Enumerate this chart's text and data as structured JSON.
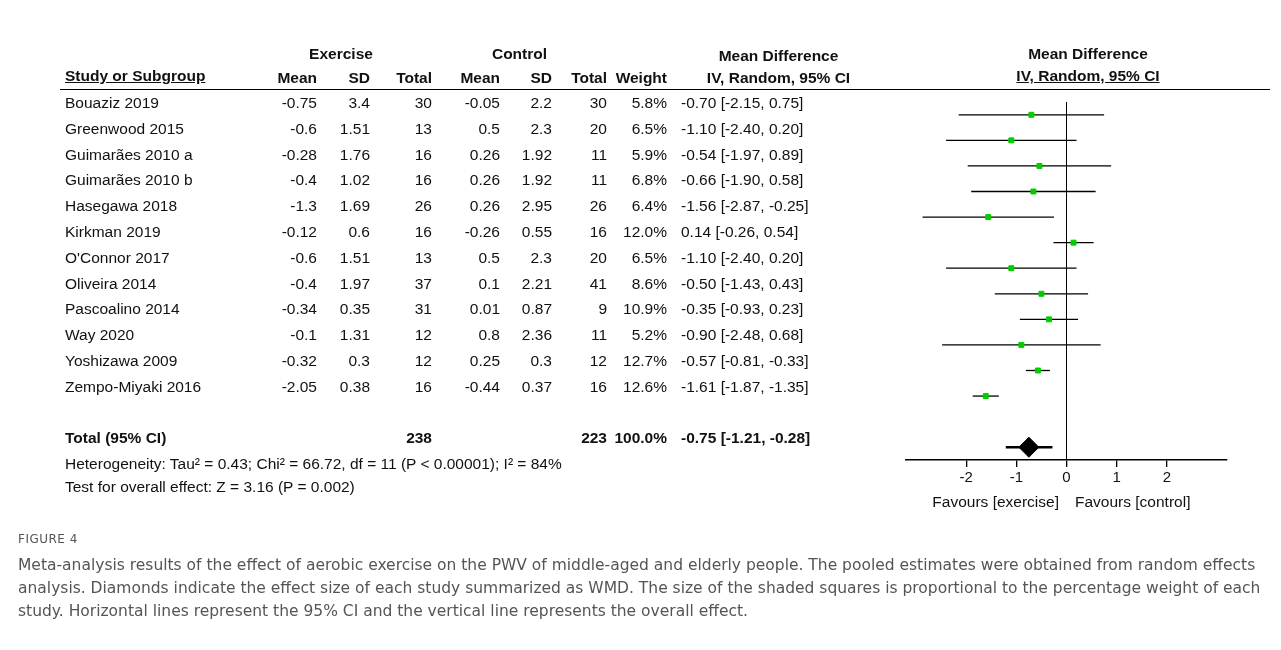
{
  "chart_data": [
    {
      "type": "other",
      "ylabel": "Study or Subgroup",
      "annotations": [
        "Exercise",
        "Control"
      ],
      "categories": [
        "Mean",
        "SD",
        "Total",
        "Mean",
        "SD",
        "Total",
        "Weight",
        "Mean Difference\nIV, Random, 95% CI"
      ],
      "y_categories": [
        "Bouaziz 2019",
        "Greenwood 2015",
        "Guimarães 2010 a",
        "Guimarães 2010 b",
        "Hasegawa 2018",
        "Kirkman 2019",
        "O'Connor 2017",
        "Oliveira 2014",
        "Pascoalino 2014",
        "Way 2020",
        "Yoshizawa 2009",
        "Zempo-Miyaki 2016",
        null,
        "Total (95% CI)"
      ],
      "cell_labels": [
        [
          "-0.75",
          "3.4",
          "30",
          "-0.05",
          "2.2",
          "30",
          "5.8%",
          "-0.70 [-2.15, 0.75]"
        ],
        [
          "-0.6",
          "1.51",
          "13",
          "0.5",
          "2.3",
          "20",
          "6.5%",
          "-1.10 [-2.40, 0.20]"
        ],
        [
          "-0.28",
          "1.76",
          "16",
          "0.26",
          "1.92",
          "11",
          "5.9%",
          "-0.54 [-1.97, 0.89]"
        ],
        [
          "-0.4",
          "1.02",
          "16",
          "0.26",
          "1.92",
          "11",
          "6.8%",
          "-0.66 [-1.90, 0.58]"
        ],
        [
          "-1.3",
          "1.69",
          "26",
          "0.26",
          "2.95",
          "26",
          "6.4%",
          "-1.56 [-2.87, -0.25]"
        ],
        [
          "-0.12",
          "0.6",
          "16",
          "-0.26",
          "0.55",
          "16",
          "12.0%",
          "0.14 [-0.26, 0.54]"
        ],
        [
          "-0.6",
          "1.51",
          "13",
          "0.5",
          "2.3",
          "20",
          "6.5%",
          "-1.10 [-2.40, 0.20]"
        ],
        [
          "-0.4",
          "1.97",
          "37",
          "0.1",
          "2.21",
          "41",
          "8.6%",
          "-0.50 [-1.43, 0.43]"
        ],
        [
          "-0.34",
          "0.35",
          "31",
          "0.01",
          "0.87",
          "9",
          "10.9%",
          "-0.35 [-0.93, 0.23]"
        ],
        [
          "-0.1",
          "1.31",
          "12",
          "0.8",
          "2.36",
          "11",
          "5.2%",
          "-0.90 [-2.48, 0.68]"
        ],
        [
          "-0.32",
          "0.3",
          "12",
          "0.25",
          "0.3",
          "12",
          "12.7%",
          "-0.57 [-0.81, -0.33]"
        ],
        [
          "-2.05",
          "0.38",
          "16",
          "-0.44",
          "0.37",
          "16",
          "12.6%",
          "-1.61 [-1.87, -1.35]"
        ],
        [
          null,
          null,
          null,
          null,
          null,
          null,
          null,
          null
        ],
        [
          null,
          null,
          "238",
          null,
          null,
          "223",
          "100.0%",
          "-0.75 [-1.21, -0.28]"
        ]
      ]
    },
    {
      "type": "scatter",
      "orientation": "horizontal",
      "title": "Mean Difference",
      "subtitle": "IV, Random, 95% CI",
      "categories": [
        null,
        null,
        null,
        null,
        null,
        null,
        null,
        null,
        null,
        null,
        null,
        null,
        null,
        null
      ],
      "xlim": [
        -3.2,
        3.2
      ],
      "xticks": [
        -2,
        -1,
        0,
        1,
        2
      ],
      "marker": "square",
      "ref_lines": [
        {
          "axis": "x",
          "value": 0
        }
      ],
      "annotations": [
        "Favours [exercise]",
        "Favours [control]"
      ],
      "series": [
        {
          "color": "#00cc00",
          "values": [
            -0.7,
            -1.1,
            -0.54,
            -0.66,
            -1.56,
            0.14,
            -1.1,
            -0.5,
            -0.35,
            -0.9,
            -0.57,
            -1.61,
            null,
            null
          ],
          "errors": [
            [
              -2.15,
              0.75
            ],
            [
              -2.4,
              0.2
            ],
            [
              -1.97,
              0.89
            ],
            [
              -1.9,
              0.58
            ],
            [
              -2.87,
              -0.25
            ],
            [
              -0.26,
              0.54
            ],
            [
              -2.4,
              0.2
            ],
            [
              -1.43,
              0.43
            ],
            [
              -0.93,
              0.23
            ],
            [
              -2.48,
              0.68
            ],
            [
              -0.81,
              -0.33
            ],
            [
              -1.87,
              -1.35
            ],
            null,
            null
          ]
        },
        {
          "color": "#000000",
          "marker": "diamond",
          "values": [
            null,
            null,
            null,
            null,
            null,
            null,
            null,
            null,
            null,
            null,
            null,
            null,
            null,
            -0.75
          ],
          "errors": [
            null,
            null,
            null,
            null,
            null,
            null,
            null,
            null,
            null,
            null,
            null,
            null,
            null,
            [
              -1.21,
              -0.28
            ]
          ]
        }
      ]
    },
    {
      "type": "other",
      "annotations": [
        "Heterogeneity: Tau² = 0.43; Chi² = 66.72, df = 11 (P < 0.00001); I² = 84%",
        "Test for overall effect: Z = 3.16 (P = 0.002)"
      ]
    },
    {
      "type": "other",
      "title": "FIGURE 4",
      "subtitle": "Meta-analysis results of the effect of aerobic exercise on the PWV of middle-aged and elderly people. The pooled estimates were obtained from random effects analysis. Diamonds indicate the effect size of each study summarized as WMD. The size of the shaded squares is proportional to the percentage weight of each study. Horizontal lines represent the 95% CI and the vertical line represents the overall effect."
    }
  ]
}
